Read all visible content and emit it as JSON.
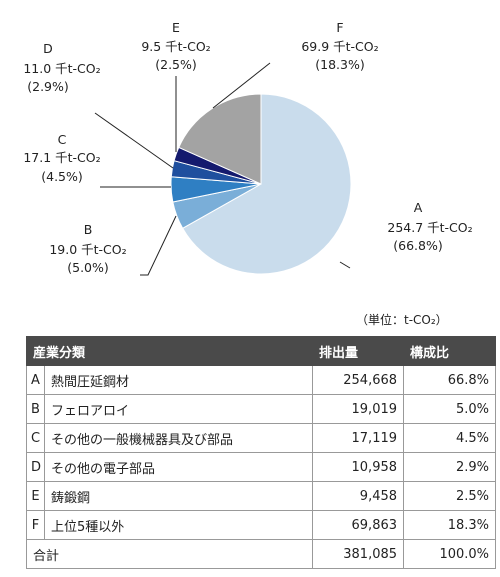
{
  "chart_data": {
    "type": "pie",
    "unit_note": "（単位：t-CO₂）",
    "slices": [
      {
        "code": "A",
        "amount": "254.7 千t-CO₂",
        "pct_label": "(66.8%)",
        "value": 254.7,
        "pct": 66.8,
        "color": "#c9dcec"
      },
      {
        "code": "B",
        "amount": "19.0 千t-CO₂",
        "pct_label": "(5.0%)",
        "value": 19.0,
        "pct": 5.0,
        "color": "#7aaed8"
      },
      {
        "code": "C",
        "amount": "17.1 千t-CO₂",
        "pct_label": "(4.5%)",
        "value": 17.1,
        "pct": 4.5,
        "color": "#2f7fc3"
      },
      {
        "code": "D",
        "amount": "11.0 千t-CO₂",
        "pct_label": "(2.9%)",
        "value": 11.0,
        "pct": 2.9,
        "color": "#1f4f9e"
      },
      {
        "code": "E",
        "amount": "9.5 千t-CO₂",
        "pct_label": "(2.5%)",
        "value": 9.5,
        "pct": 2.5,
        "color": "#141a6e"
      },
      {
        "code": "F",
        "amount": "69.9 千t-CO₂",
        "pct_label": "(18.3%)",
        "value": 69.9,
        "pct": 18.3,
        "color": "#a3a3a3"
      }
    ]
  },
  "table": {
    "headers": [
      "産業分類",
      "排出量",
      "構成比"
    ],
    "rows": [
      {
        "code": "A",
        "name": "熱間圧延鋼材",
        "emission": "254,668",
        "share": "66.8%"
      },
      {
        "code": "B",
        "name": "フェロアロイ",
        "emission": "19,019",
        "share": "5.0%"
      },
      {
        "code": "C",
        "name": "その他の一般機械器具及び部品",
        "emission": "17,119",
        "share": "4.5%"
      },
      {
        "code": "D",
        "name": "その他の電子部品",
        "emission": "10,958",
        "share": "2.9%"
      },
      {
        "code": "E",
        "name": "鋳鍛鋼",
        "emission": "9,458",
        "share": "2.5%"
      },
      {
        "code": "F",
        "name": "上位5種以外",
        "emission": "69,863",
        "share": "18.3%"
      }
    ],
    "total": {
      "label": "合計",
      "emission": "381,085",
      "share": "100.0%"
    }
  }
}
